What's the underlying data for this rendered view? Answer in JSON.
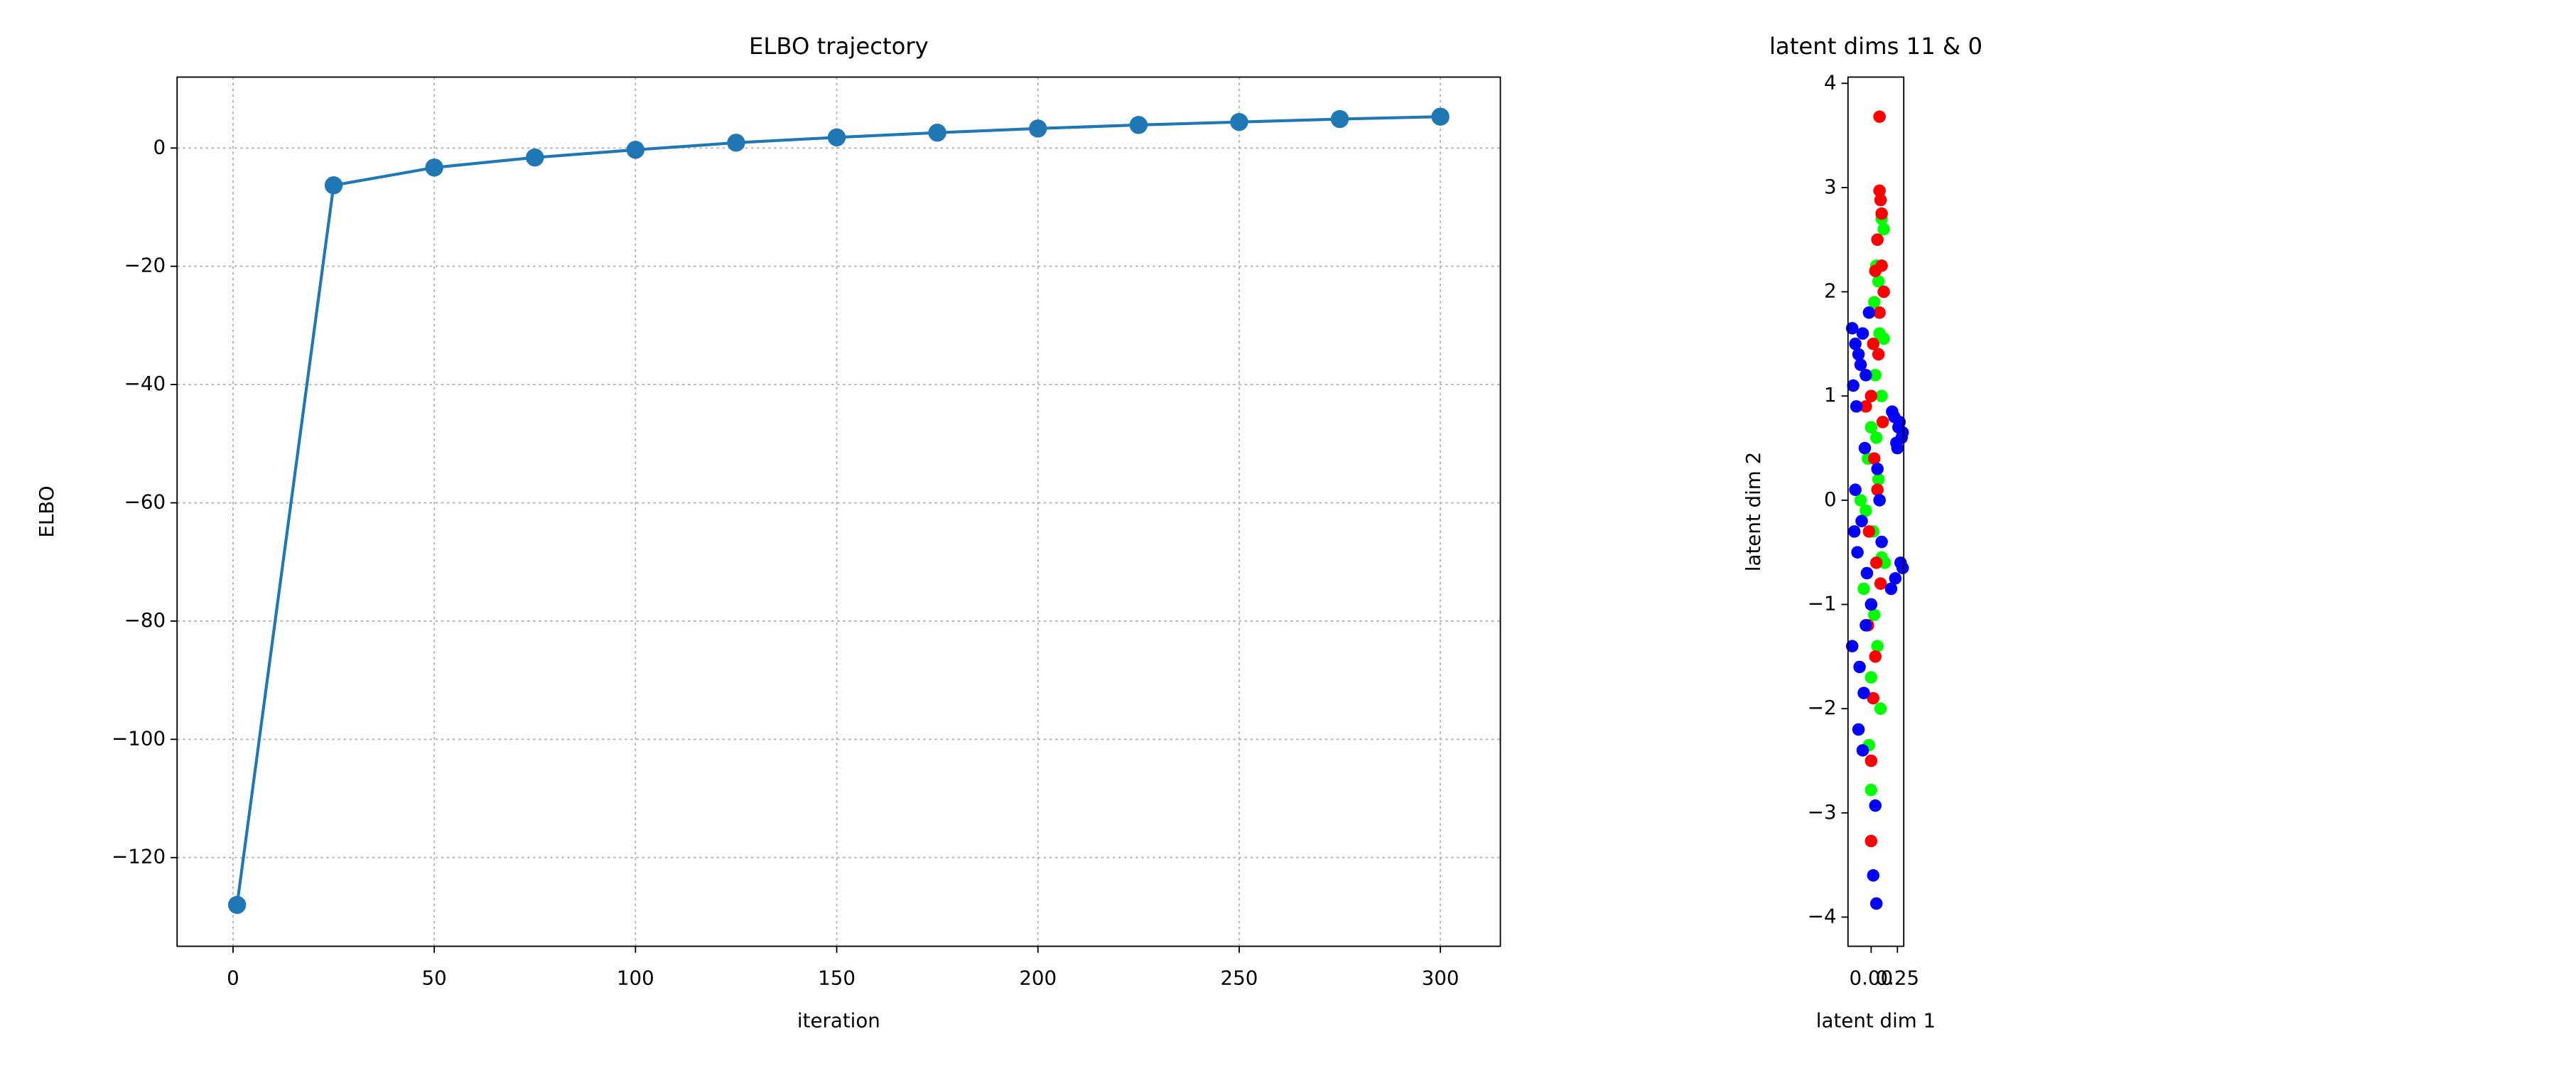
{
  "chart_data": [
    {
      "type": "line",
      "title": "ELBO trajectory",
      "xlabel": "iteration",
      "ylabel": "ELBO",
      "x": [
        1,
        25,
        50,
        75,
        100,
        125,
        150,
        175,
        200,
        225,
        250,
        275,
        300
      ],
      "series": [
        {
          "color": "#1f77b4",
          "values": [
            -128,
            -6.3,
            -3.3,
            -1.6,
            -0.3,
            0.9,
            1.8,
            2.6,
            3.3,
            3.9,
            4.4,
            4.9,
            5.3
          ]
        }
      ],
      "xlim": [
        -13.9,
        314.9
      ],
      "xticks": [
        0,
        50,
        100,
        150,
        200,
        250,
        300
      ],
      "ylim": [
        -135,
        12
      ],
      "yticks": [
        {
          "value": -120,
          "label": "−120"
        },
        {
          "value": -100,
          "label": "−100"
        },
        {
          "value": -80,
          "label": "−80"
        },
        {
          "value": -60,
          "label": "−60"
        },
        {
          "value": -40,
          "label": "−40"
        },
        {
          "value": -20,
          "label": "−20"
        },
        0
      ],
      "grid": true
    },
    {
      "type": "scatter",
      "title": "latent dims 11 & 0",
      "xlabel": "latent dim 1",
      "ylabel": "latent dim 2",
      "series": [
        {
          "color": "#00ff00",
          "x": [
            0.1,
            0.12,
            0.05,
            0.07,
            0.03,
            0.12,
            0.04,
            0.1,
            0.0,
            -0.03,
            0.07,
            -0.05,
            0.02,
            0.1,
            -0.07,
            0.03,
            0.06,
            0.0,
            0.09,
            -0.02,
            0.0,
            -0.1,
            0.05,
            0.13,
            0.08
          ],
          "values": [
            2.7,
            2.6,
            2.25,
            2.1,
            1.9,
            1.55,
            1.2,
            1.0,
            0.7,
            0.4,
            0.2,
            -0.1,
            -0.3,
            -0.55,
            -0.85,
            -1.1,
            -1.4,
            -1.7,
            -2.0,
            -2.35,
            -2.78,
            0.0,
            0.6,
            -0.6,
            1.6
          ]
        },
        {
          "color": "#ff0000",
          "x": [
            0.08,
            0.08,
            0.09,
            0.1,
            0.06,
            0.1,
            0.12,
            0.08,
            0.02,
            0.07,
            0.0,
            0.11,
            0.03,
            0.06,
            -0.02,
            0.05,
            0.0,
            -0.03,
            0.04,
            0.02,
            0.0,
            0.0,
            0.04,
            -0.05,
            0.09
          ],
          "values": [
            3.68,
            2.97,
            2.88,
            2.75,
            2.5,
            2.25,
            2.0,
            1.8,
            1.5,
            1.4,
            1.0,
            0.75,
            0.4,
            0.1,
            -0.3,
            -0.6,
            -1.0,
            -1.2,
            -1.5,
            -1.9,
            -2.5,
            -3.27,
            2.2,
            0.9,
            -0.8
          ]
        },
        {
          "color": "#0000ff",
          "x": [
            -0.18,
            -0.15,
            -0.12,
            -0.08,
            -0.05,
            -0.17,
            -0.14,
            -0.1,
            -0.06,
            -0.02,
            0.22,
            0.26,
            0.29,
            0.24,
            0.2,
            0.27,
            0.3,
            0.25,
            -0.16,
            -0.13,
            -0.09,
            -0.04,
            0.0,
            -0.18,
            -0.11,
            -0.07,
            0.28,
            0.23,
            0.3,
            0.19,
            -0.12,
            -0.08,
            -0.05,
            -0.15,
            0.02,
            0.05,
            0.04,
            0.06,
            0.1,
            0.08
          ],
          "values": [
            1.65,
            1.5,
            1.4,
            1.6,
            1.2,
            1.1,
            0.9,
            1.3,
            0.5,
            1.8,
            0.8,
            0.7,
            0.6,
            0.55,
            0.85,
            0.75,
            0.65,
            0.5,
            -0.3,
            -0.5,
            -0.2,
            -0.7,
            -1.0,
            -1.4,
            -1.6,
            -1.85,
            -0.6,
            -0.75,
            -0.65,
            -0.85,
            -2.2,
            -2.4,
            -1.2,
            0.1,
            -3.6,
            -3.87,
            -2.93,
            0.3,
            -0.4,
            0.0
          ]
        }
      ],
      "xlim": [
        -0.22,
        0.31
      ],
      "xticks": [
        {
          "value": 0,
          "label": "0.00"
        },
        {
          "value": 0.25,
          "label": "0.25"
        }
      ],
      "ylim": [
        -4.28,
        4.06
      ],
      "yticks": [
        {
          "value": -4,
          "label": "−4"
        },
        {
          "value": -3,
          "label": "−3"
        },
        {
          "value": -2,
          "label": "−2"
        },
        {
          "value": -1,
          "label": "−1"
        },
        0,
        1,
        2,
        3,
        4
      ],
      "grid": false
    }
  ]
}
